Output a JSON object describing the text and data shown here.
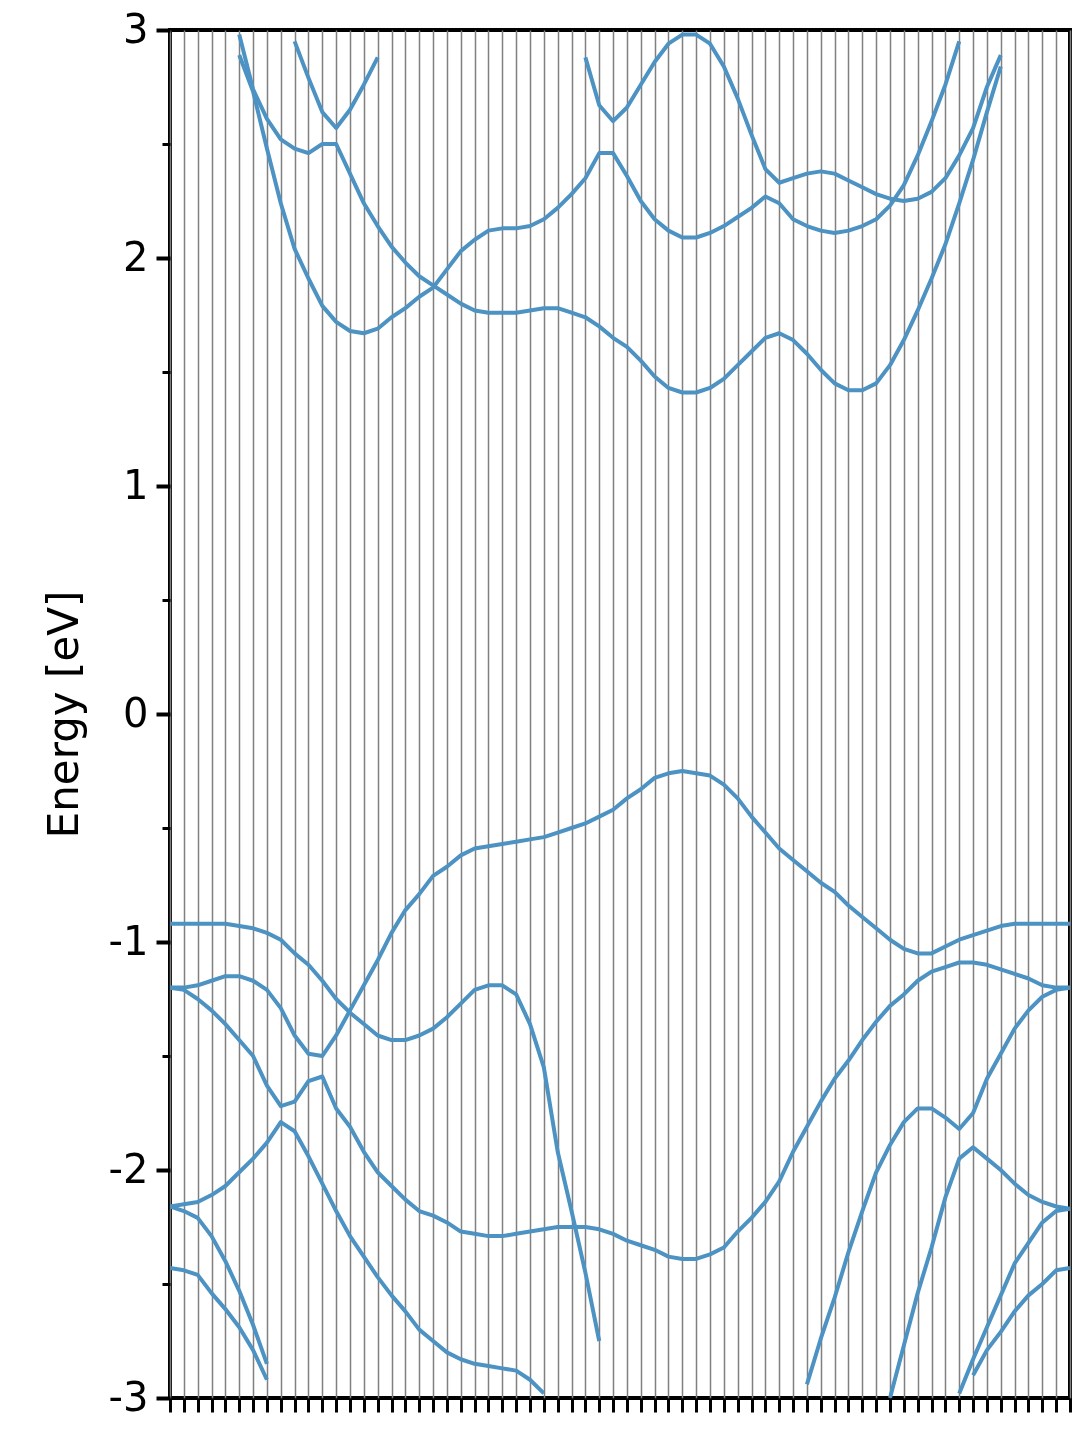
{
  "chart_data": {
    "type": "line",
    "ylabel": "Energy [eV]",
    "categories": [
      null,
      null,
      null,
      null,
      null,
      null,
      null,
      null,
      null,
      null,
      null,
      null,
      null,
      null,
      null,
      null,
      null,
      null,
      null,
      null,
      null,
      null,
      null,
      null,
      null,
      null,
      null,
      null,
      null,
      null,
      null,
      null,
      null,
      null,
      null,
      null,
      null,
      null,
      null,
      null,
      null,
      null,
      null,
      null,
      null,
      null,
      null,
      null,
      null,
      null,
      null,
      null,
      null,
      null,
      null,
      null,
      null,
      null,
      null,
      null,
      null,
      null,
      null,
      null,
      null,
      null
    ],
    "ylim": [
      -3,
      3
    ],
    "yticks": [
      -3,
      {
        "value": -2.5,
        "label": null
      },
      -2,
      {
        "value": -1.5,
        "label": null
      },
      -1,
      {
        "value": -0.5,
        "label": null
      },
      0,
      {
        "value": 0.5,
        "label": null
      },
      1,
      {
        "value": 1.5,
        "label": null
      },
      2,
      {
        "value": 2.5,
        "label": null
      },
      3
    ],
    "grid": "x",
    "tick_labels": "y",
    "series": [
      {
        "color": "#4c92c3",
        "values": [
          null,
          null,
          null,
          null,
          null,
          2.89,
          2.73,
          2.48,
          2.24,
          2.04,
          1.91,
          1.79,
          1.72,
          1.68,
          1.67,
          1.69,
          1.74,
          1.78,
          1.83,
          1.87,
          1.95,
          2.03,
          2.08,
          2.12,
          2.13,
          2.13,
          2.14,
          2.17,
          2.22,
          2.28,
          2.35,
          2.46,
          2.46,
          2.36,
          2.25,
          2.17,
          2.12,
          2.09,
          2.09,
          2.11,
          2.14,
          2.18,
          2.22,
          2.27,
          2.24,
          2.17,
          2.14,
          2.12,
          2.11,
          2.12,
          2.14,
          2.17,
          2.23,
          2.32,
          2.45,
          2.6,
          2.76,
          2.95,
          null,
          null,
          null,
          null,
          null,
          null,
          null,
          null
        ]
      },
      {
        "color": "#4c92c3",
        "values": [
          null,
          null,
          null,
          null,
          null,
          2.98,
          2.74,
          2.61,
          2.52,
          2.48,
          2.46,
          2.5,
          2.5,
          2.37,
          2.24,
          2.14,
          2.05,
          1.98,
          1.92,
          1.88,
          1.84,
          1.8,
          1.77,
          1.76,
          1.76,
          1.76,
          1.77,
          1.78,
          1.78,
          1.76,
          1.74,
          1.7,
          1.65,
          1.61,
          1.55,
          1.48,
          1.43,
          1.41,
          1.41,
          1.43,
          1.47,
          1.53,
          1.59,
          1.65,
          1.67,
          1.64,
          1.58,
          1.51,
          1.45,
          1.42,
          1.42,
          1.45,
          1.53,
          1.64,
          1.77,
          1.91,
          2.06,
          2.24,
          2.43,
          2.64,
          2.84,
          null,
          null,
          null,
          null,
          null
        ]
      },
      {
        "color": "#4c92c3",
        "values": [
          null,
          null,
          null,
          null,
          null,
          null,
          null,
          null,
          null,
          2.95,
          2.79,
          2.64,
          2.57,
          2.65,
          2.76,
          2.88,
          null,
          null,
          null,
          null,
          null,
          null,
          null,
          null,
          null,
          null,
          null,
          null,
          null,
          null,
          null,
          null,
          null,
          null,
          null,
          null,
          null,
          null,
          null,
          null,
          null,
          null,
          null,
          null,
          null,
          null,
          null,
          null,
          null,
          null,
          null,
          null,
          null,
          null,
          null,
          null,
          null,
          null,
          null,
          null,
          null,
          null,
          null,
          null,
          null,
          null
        ]
      },
      {
        "color": "#4c92c3",
        "values": [
          null,
          null,
          null,
          null,
          null,
          null,
          null,
          null,
          null,
          null,
          null,
          null,
          null,
          null,
          null,
          null,
          null,
          null,
          null,
          null,
          null,
          null,
          null,
          null,
          null,
          null,
          null,
          null,
          null,
          null,
          2.88,
          2.67,
          2.6,
          2.66,
          2.76,
          2.86,
          2.94,
          2.98,
          2.98,
          2.94,
          2.84,
          2.7,
          2.54,
          2.39,
          2.33,
          2.35,
          2.37,
          2.38,
          2.37,
          2.34,
          2.31,
          2.28,
          2.26,
          2.25,
          2.26,
          2.29,
          2.35,
          2.45,
          2.57,
          2.75,
          2.89,
          null,
          null,
          null,
          null,
          null
        ]
      },
      {
        "color": "#4c92c3",
        "values": [
          -1.2,
          -1.2,
          -1.19,
          -1.17,
          -1.15,
          -1.15,
          -1.17,
          -1.21,
          -1.29,
          -1.41,
          -1.49,
          -1.5,
          -1.41,
          -1.3,
          -1.19,
          -1.08,
          -0.96,
          -0.86,
          -0.79,
          -0.71,
          -0.67,
          -0.62,
          -0.59,
          -0.58,
          -0.57,
          -0.56,
          -0.55,
          -0.54,
          -0.52,
          -0.5,
          -0.48,
          -0.45,
          -0.42,
          -0.37,
          -0.33,
          -0.28,
          -0.26,
          -0.25,
          -0.26,
          -0.27,
          -0.31,
          -0.37,
          -0.45,
          -0.52,
          -0.59,
          -0.64,
          -0.69,
          -0.74,
          -0.78,
          -0.84,
          -0.89,
          -0.94,
          -0.99,
          -1.03,
          -1.05,
          -1.05,
          -1.02,
          -0.99,
          -0.97,
          -0.95,
          -0.93,
          -0.92,
          -0.92,
          -0.92,
          -0.92,
          -0.92
        ]
      },
      {
        "color": "#4c92c3",
        "values": [
          -0.92,
          -0.92,
          -0.92,
          -0.92,
          -0.92,
          -0.93,
          -0.94,
          -0.96,
          -0.99,
          -1.05,
          -1.1,
          -1.17,
          -1.25,
          -1.31,
          -1.36,
          -1.41,
          -1.43,
          -1.43,
          -1.41,
          -1.38,
          -1.33,
          -1.27,
          -1.21,
          -1.19,
          -1.19,
          -1.23,
          -1.36,
          -1.55,
          -1.92,
          -2.18,
          -2.45,
          -2.75,
          null,
          null,
          null,
          null,
          null,
          null,
          null,
          null,
          null,
          null,
          null,
          null,
          null,
          null,
          null,
          null,
          null,
          null,
          null,
          null,
          null,
          null,
          null,
          null,
          null,
          null,
          null,
          null,
          null,
          null,
          null,
          null,
          null,
          null
        ]
      },
      {
        "color": "#4c92c3",
        "values": [
          -1.2,
          -1.21,
          -1.25,
          -1.3,
          -1.36,
          -1.43,
          -1.5,
          -1.63,
          -1.72,
          -1.7,
          -1.61,
          -1.59,
          -1.73,
          -1.81,
          -1.92,
          -2.01,
          -2.07,
          -2.13,
          -2.18,
          -2.2,
          -2.23,
          -2.27,
          -2.28,
          -2.29,
          -2.29,
          -2.28,
          -2.27,
          -2.26,
          -2.25,
          -2.25,
          -2.25,
          -2.26,
          -2.28,
          -2.31,
          -2.33,
          -2.35,
          -2.38,
          -2.39,
          -2.39,
          -2.37,
          -2.34,
          -2.27,
          -2.21,
          -2.14,
          -2.05,
          -1.92,
          -1.81,
          -1.7,
          -1.6,
          -1.52,
          -1.43,
          -1.35,
          -1.28,
          -1.23,
          -1.17,
          -1.13,
          -1.11,
          -1.09,
          -1.09,
          -1.1,
          -1.12,
          -1.14,
          -1.16,
          -1.19,
          -1.2,
          -1.2
        ]
      },
      {
        "color": "#4c92c3",
        "values": [
          -2.16,
          -2.15,
          -2.14,
          -2.11,
          -2.07,
          -2.01,
          -1.95,
          -1.88,
          -1.79,
          -1.83,
          -1.94,
          -2.06,
          -2.18,
          -2.29,
          -2.38,
          -2.47,
          -2.55,
          -2.62,
          -2.7,
          -2.75,
          -2.8,
          -2.83,
          -2.85,
          -2.86,
          -2.87,
          -2.88,
          -2.92,
          -2.98,
          null,
          null,
          null,
          null,
          null,
          null,
          null,
          null,
          null,
          null,
          null,
          null,
          null,
          null,
          null,
          null,
          null,
          null,
          null,
          null,
          null,
          null,
          null,
          null,
          null,
          null,
          null,
          null,
          null,
          null,
          null,
          null,
          null,
          null,
          null,
          null,
          null,
          null
        ]
      },
      {
        "color": "#4c92c3",
        "values": [
          -2.16,
          -2.18,
          -2.21,
          -2.29,
          -2.4,
          -2.53,
          -2.68,
          -2.85,
          null,
          null,
          null,
          null,
          null,
          null,
          null,
          null,
          null,
          null,
          null,
          null,
          null,
          null,
          null,
          null,
          null,
          null,
          null,
          null,
          null,
          null,
          null,
          null,
          null,
          null,
          null,
          null,
          null,
          null,
          null,
          null,
          null,
          null,
          null,
          null,
          null,
          null,
          null,
          null,
          null,
          null,
          null,
          null,
          null,
          null,
          null,
          null,
          null,
          null,
          null,
          null,
          null,
          null,
          null,
          null,
          null,
          null
        ]
      },
      {
        "color": "#4c92c3",
        "values": [
          -2.43,
          -2.44,
          -2.46,
          -2.54,
          -2.61,
          -2.69,
          -2.79,
          -2.92,
          null,
          null,
          null,
          null,
          null,
          null,
          null,
          null,
          null,
          null,
          null,
          null,
          null,
          null,
          null,
          null,
          null,
          null,
          null,
          null,
          null,
          null,
          null,
          null,
          null,
          null,
          null,
          null,
          null,
          null,
          null,
          null,
          null,
          null,
          null,
          null,
          null,
          null,
          null,
          null,
          null,
          null,
          null,
          null,
          null,
          null,
          null,
          null,
          null,
          null,
          null,
          null,
          null,
          null,
          null,
          null,
          null,
          null
        ]
      },
      {
        "color": "#4c92c3",
        "values": [
          null,
          null,
          null,
          null,
          null,
          null,
          null,
          null,
          null,
          null,
          null,
          null,
          null,
          null,
          null,
          null,
          null,
          null,
          null,
          null,
          null,
          null,
          null,
          null,
          null,
          null,
          null,
          null,
          null,
          null,
          null,
          null,
          null,
          null,
          null,
          null,
          null,
          null,
          null,
          null,
          null,
          null,
          null,
          null,
          null,
          null,
          -2.94,
          -2.74,
          -2.56,
          -2.36,
          -2.18,
          -2.01,
          -1.89,
          -1.79,
          -1.73,
          -1.73,
          -1.77,
          -1.82,
          -1.75,
          -1.6,
          -1.49,
          -1.38,
          -1.3,
          -1.24,
          -1.21,
          -1.2
        ]
      },
      {
        "color": "#4c92c3",
        "values": [
          null,
          null,
          null,
          null,
          null,
          null,
          null,
          null,
          null,
          null,
          null,
          null,
          null,
          null,
          null,
          null,
          null,
          null,
          null,
          null,
          null,
          null,
          null,
          null,
          null,
          null,
          null,
          null,
          null,
          null,
          null,
          null,
          null,
          null,
          null,
          null,
          null,
          null,
          null,
          null,
          null,
          null,
          null,
          null,
          null,
          null,
          null,
          null,
          null,
          null,
          null,
          null,
          -3.0,
          -2.77,
          -2.54,
          -2.34,
          -2.12,
          -1.95,
          -1.9,
          -1.95,
          -2.0,
          -2.06,
          -2.11,
          -2.14,
          -2.16,
          -2.17
        ]
      },
      {
        "color": "#4c92c3",
        "values": [
          null,
          null,
          null,
          null,
          null,
          null,
          null,
          null,
          null,
          null,
          null,
          null,
          null,
          null,
          null,
          null,
          null,
          null,
          null,
          null,
          null,
          null,
          null,
          null,
          null,
          null,
          null,
          null,
          null,
          null,
          null,
          null,
          null,
          null,
          null,
          null,
          null,
          null,
          null,
          null,
          null,
          null,
          null,
          null,
          null,
          null,
          null,
          null,
          null,
          null,
          null,
          null,
          null,
          null,
          null,
          null,
          null,
          -2.98,
          -2.83,
          -2.69,
          -2.55,
          -2.41,
          -2.32,
          -2.23,
          -2.18,
          -2.17
        ]
      },
      {
        "color": "#4c92c3",
        "values": [
          null,
          null,
          null,
          null,
          null,
          null,
          null,
          null,
          null,
          null,
          null,
          null,
          null,
          null,
          null,
          null,
          null,
          null,
          null,
          null,
          null,
          null,
          null,
          null,
          null,
          null,
          null,
          null,
          null,
          null,
          null,
          null,
          null,
          null,
          null,
          null,
          null,
          null,
          null,
          null,
          null,
          null,
          null,
          null,
          null,
          null,
          null,
          null,
          null,
          null,
          null,
          null,
          null,
          null,
          null,
          null,
          null,
          null,
          -2.9,
          -2.79,
          -2.71,
          -2.62,
          -2.55,
          -2.5,
          -2.44,
          -2.43
        ]
      }
    ]
  }
}
